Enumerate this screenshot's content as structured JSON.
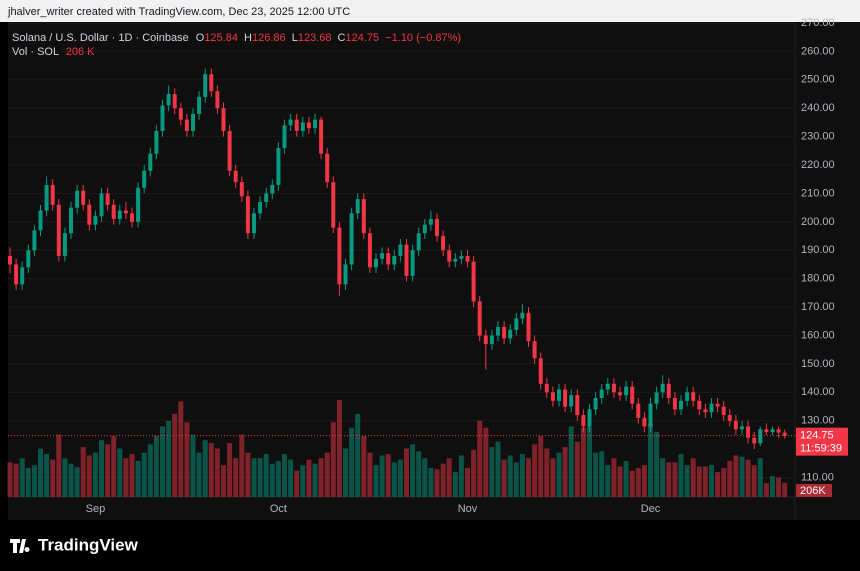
{
  "header": "jhalver_writer created with TradingView.com, Dec 23, 2025 12:00 UTC",
  "footer": "TradingView",
  "chart_data": {
    "type": "candlestick",
    "legend": {
      "symbol": "Solana / U.S. Dollar · 1D · Coinbase",
      "open_label": "O",
      "high_label": "H",
      "low_label": "L",
      "close_label": "C",
      "change": "−1.10 (−0.87%)",
      "volume_title": "Vol · SOL",
      "volume_value": "206 K"
    },
    "last_volume_label": "206K",
    "countdown": "11:59:39",
    "up_color": "#089981",
    "down_color": "#f23645",
    "categories": [
      null,
      null,
      null,
      null,
      null,
      null,
      null,
      null,
      null,
      null,
      null,
      null,
      null,
      null,
      "Sep",
      null,
      null,
      null,
      null,
      null,
      null,
      null,
      null,
      null,
      null,
      null,
      null,
      null,
      null,
      null,
      null,
      null,
      null,
      null,
      null,
      null,
      null,
      null,
      null,
      null,
      null,
      null,
      null,
      null,
      "Oct",
      null,
      null,
      null,
      null,
      null,
      null,
      null,
      null,
      null,
      null,
      null,
      null,
      null,
      null,
      null,
      null,
      null,
      null,
      null,
      null,
      null,
      null,
      null,
      null,
      null,
      null,
      null,
      null,
      null,
      null,
      "Nov",
      null,
      null,
      null,
      null,
      null,
      null,
      null,
      null,
      null,
      null,
      null,
      null,
      null,
      null,
      null,
      null,
      null,
      null,
      null,
      null,
      null,
      null,
      null,
      null,
      null,
      null,
      null,
      null,
      null,
      "Dec",
      null,
      null,
      null,
      null,
      null,
      null,
      null,
      null,
      null,
      null,
      null,
      null,
      null,
      null,
      null,
      null,
      null,
      null,
      null,
      null,
      null,
      null
    ],
    "open": [
      188,
      185,
      178,
      184,
      190,
      197,
      204,
      213,
      206,
      188,
      196,
      205,
      211,
      206,
      199,
      202,
      210,
      206,
      201,
      204,
      203,
      200,
      212,
      218,
      224,
      232,
      241,
      245,
      240,
      236,
      232,
      238,
      244,
      252,
      246,
      240,
      232,
      218,
      214,
      209,
      196,
      203,
      207,
      210,
      213,
      226,
      234,
      236,
      232,
      235,
      233,
      236,
      224,
      214,
      198,
      178,
      185,
      203,
      208,
      196,
      184,
      187,
      189,
      185,
      188,
      192,
      181,
      190,
      196,
      199,
      201,
      195,
      190,
      186,
      187,
      188,
      186,
      172,
      160,
      157,
      160,
      163,
      159,
      162,
      166,
      168,
      158,
      152,
      143,
      140,
      137,
      141,
      135,
      139,
      132,
      128,
      134,
      138,
      141,
      143,
      140,
      139,
      142,
      136,
      131,
      128,
      136,
      140,
      143,
      138,
      134,
      137,
      140,
      137,
      134,
      133,
      136,
      135,
      132,
      130,
      127,
      128,
      124,
      122,
      127,
      126,
      127,
      125.84
    ],
    "high": [
      191,
      187,
      186,
      192,
      199,
      206,
      216,
      215,
      208,
      198,
      207,
      213,
      213,
      208,
      204,
      212,
      212,
      208,
      206,
      207,
      205,
      214,
      220,
      226,
      234,
      243,
      248,
      247,
      242,
      238,
      240,
      246,
      254,
      254,
      248,
      242,
      234,
      220,
      216,
      211,
      205,
      209,
      212,
      215,
      228,
      236,
      238,
      238,
      237,
      237,
      238,
      237,
      226,
      216,
      200,
      187,
      205,
      210,
      210,
      198,
      189,
      191,
      191,
      190,
      194,
      194,
      192,
      198,
      201,
      204,
      203,
      197,
      192,
      189,
      190,
      190,
      188,
      174,
      162,
      162,
      165,
      165,
      164,
      168,
      171,
      170,
      160,
      154,
      145,
      142,
      143,
      143,
      141,
      141,
      134,
      136,
      140,
      143,
      145,
      145,
      142,
      144,
      144,
      138,
      133,
      138,
      142,
      146,
      145,
      140,
      139,
      142,
      142,
      139,
      136,
      138,
      138,
      137,
      134,
      132,
      130,
      130,
      126,
      128,
      129,
      128,
      128,
      126.86
    ],
    "low": [
      182,
      176,
      176,
      182,
      188,
      195,
      202,
      204,
      186,
      186,
      194,
      203,
      204,
      197,
      197,
      200,
      204,
      199,
      199,
      201,
      198,
      198,
      210,
      216,
      222,
      230,
      239,
      238,
      234,
      230,
      230,
      236,
      242,
      244,
      238,
      230,
      216,
      212,
      207,
      194,
      194,
      201,
      205,
      208,
      211,
      224,
      232,
      230,
      230,
      231,
      231,
      222,
      212,
      196,
      174,
      176,
      183,
      201,
      194,
      182,
      182,
      185,
      183,
      183,
      186,
      179,
      179,
      188,
      194,
      197,
      193,
      188,
      184,
      184,
      185,
      184,
      170,
      158,
      148,
      155,
      158,
      157,
      157,
      160,
      164,
      156,
      150,
      141,
      138,
      135,
      135,
      133,
      133,
      130,
      126,
      126,
      132,
      136,
      139,
      138,
      137,
      137,
      134,
      129,
      126,
      126,
      134,
      138,
      136,
      132,
      132,
      135,
      135,
      132,
      131,
      131,
      133,
      130,
      128,
      125,
      125,
      122,
      120,
      121,
      125,
      125,
      124,
      123.68
    ],
    "close": [
      185,
      178,
      184,
      190,
      197,
      204,
      213,
      206,
      188,
      196,
      205,
      211,
      206,
      199,
      202,
      210,
      206,
      201,
      204,
      203,
      200,
      212,
      218,
      224,
      232,
      241,
      245,
      240,
      236,
      232,
      238,
      244,
      252,
      246,
      240,
      232,
      218,
      214,
      209,
      196,
      203,
      207,
      210,
      213,
      226,
      234,
      236,
      232,
      235,
      233,
      236,
      224,
      214,
      198,
      178,
      185,
      203,
      208,
      196,
      184,
      187,
      189,
      185,
      188,
      192,
      181,
      190,
      196,
      199,
      201,
      195,
      190,
      186,
      187,
      188,
      186,
      172,
      160,
      157,
      160,
      163,
      159,
      162,
      166,
      168,
      158,
      152,
      143,
      140,
      137,
      141,
      135,
      139,
      132,
      128,
      134,
      138,
      141,
      143,
      140,
      139,
      142,
      136,
      131,
      128,
      136,
      140,
      143,
      138,
      134,
      137,
      140,
      137,
      134,
      133,
      136,
      135,
      132,
      130,
      127,
      128,
      124,
      122,
      127,
      126,
      127,
      125.84,
      124.75
    ],
    "volume": [
      500,
      480,
      560,
      420,
      460,
      700,
      620,
      540,
      900,
      560,
      480,
      430,
      720,
      600,
      640,
      820,
      760,
      880,
      700,
      560,
      620,
      520,
      640,
      760,
      880,
      1020,
      1100,
      1200,
      1380,
      1080,
      900,
      640,
      820,
      780,
      700,
      460,
      780,
      560,
      900,
      640,
      560,
      560,
      620,
      480,
      520,
      620,
      540,
      380,
      460,
      540,
      480,
      560,
      640,
      1080,
      1400,
      700,
      1000,
      1200,
      880,
      640,
      460,
      600,
      620,
      500,
      540,
      700,
      760,
      660,
      560,
      420,
      400,
      480,
      560,
      360,
      600,
      420,
      680,
      1100,
      1000,
      720,
      800,
      540,
      600,
      500,
      620,
      560,
      760,
      880,
      700,
      560,
      640,
      720,
      1020,
      800,
      1000,
      1020,
      640,
      660,
      460,
      560,
      440,
      520,
      380,
      420,
      460,
      1060,
      940,
      560,
      500,
      500,
      620,
      460,
      560,
      440,
      440,
      460,
      360,
      420,
      520,
      600,
      580,
      540,
      460,
      560,
      200,
      300,
      280,
      206
    ],
    "ylim": [
      106.5,
      270
    ],
    "yticks": [
      {
        "value": 110,
        "label": "110.00"
      },
      {
        "value": 130,
        "label": "130.00"
      },
      {
        "value": 140,
        "label": "140.00"
      },
      {
        "value": 150,
        "label": "150.00"
      },
      {
        "value": 160,
        "label": "160.00"
      },
      {
        "value": 170,
        "label": "170.00"
      },
      {
        "value": 180,
        "label": "180.00"
      },
      {
        "value": 190,
        "label": "190.00"
      },
      {
        "value": 200,
        "label": "200.00"
      },
      {
        "value": 210,
        "label": "210.00"
      },
      {
        "value": 220,
        "label": "220.00"
      },
      {
        "value": 230,
        "label": "230.00"
      },
      {
        "value": 240,
        "label": "240.00"
      },
      {
        "value": 250,
        "label": "250.00"
      },
      {
        "value": 260,
        "label": "260.00"
      },
      {
        "value": 270,
        "label": "270.00"
      }
    ]
  }
}
